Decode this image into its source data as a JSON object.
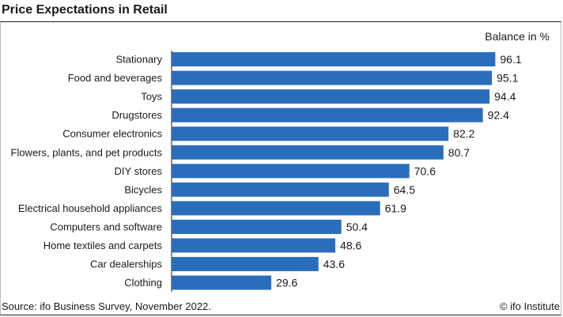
{
  "header": {
    "title": "Price Expectations in Retail"
  },
  "footer": {
    "source": "Source: ifo Business Survey, November 2022.",
    "credit": "© ifo Institute"
  },
  "chart_data": {
    "type": "bar",
    "orientation": "horizontal",
    "unit_label": "Balance in %",
    "categories": [
      "Stationary",
      "Food and beverages",
      "Toys",
      "Drugstores",
      "Consumer electronics",
      "Flowers, plants, and pet products",
      "DIY stores",
      "Bicycles",
      "Electrical household appliances",
      "Computers and software",
      "Home textiles and carpets",
      "Car dealerships",
      "Clothing"
    ],
    "values": [
      96.1,
      95.1,
      94.4,
      92.4,
      82.2,
      80.7,
      70.6,
      64.5,
      61.9,
      50.4,
      48.6,
      43.6,
      29.6
    ],
    "value_labels": [
      "96.1",
      "95.1",
      "94.4",
      "92.4",
      "82.2",
      "80.7",
      "70.6",
      "64.5",
      "61.9",
      "50.4",
      "48.6",
      "43.6",
      "29.6"
    ],
    "xlim": [
      0,
      100
    ],
    "bar_color": "#2a6ebb",
    "grid": false,
    "legend": "none"
  }
}
